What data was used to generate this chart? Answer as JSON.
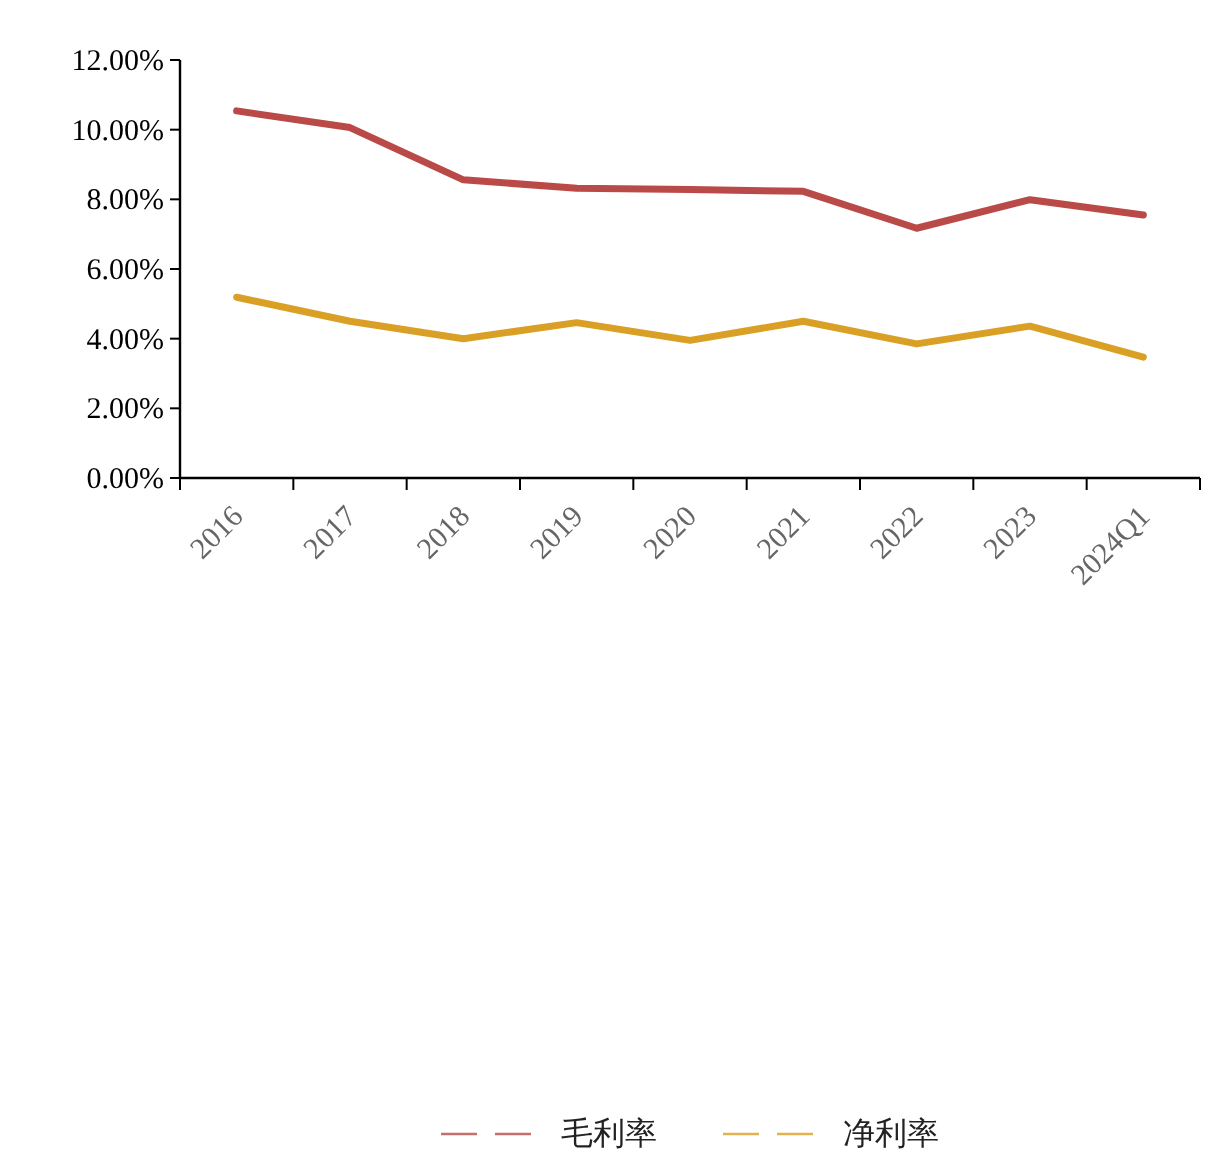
{
  "chart_data": {
    "type": "line",
    "categories": [
      "2016",
      "2017",
      "2018",
      "2019",
      "2020",
      "2021",
      "2022",
      "2023",
      "2024Q1"
    ],
    "series": [
      {
        "name": "毛利率",
        "color": "#b94a48",
        "values": [
          10.54,
          10.06,
          8.56,
          8.32,
          8.28,
          8.23,
          7.17,
          7.99,
          7.55
        ]
      },
      {
        "name": "净利率",
        "color": "#daa025",
        "values": [
          5.19,
          4.5,
          4.0,
          4.46,
          3.95,
          4.5,
          3.85,
          4.36,
          3.47
        ]
      }
    ],
    "ylim": [
      0,
      12
    ],
    "yticks": [
      {
        "value": 0,
        "label": "0.00%"
      },
      {
        "value": 2,
        "label": "2.00%"
      },
      {
        "value": 4,
        "label": "4.00%"
      },
      {
        "value": 6,
        "label": "6.00%"
      },
      {
        "value": 8,
        "label": "8.00%"
      },
      {
        "value": 10,
        "label": "10.00%"
      },
      {
        "value": 12,
        "label": "12.00%"
      }
    ],
    "legend": "bottom"
  }
}
